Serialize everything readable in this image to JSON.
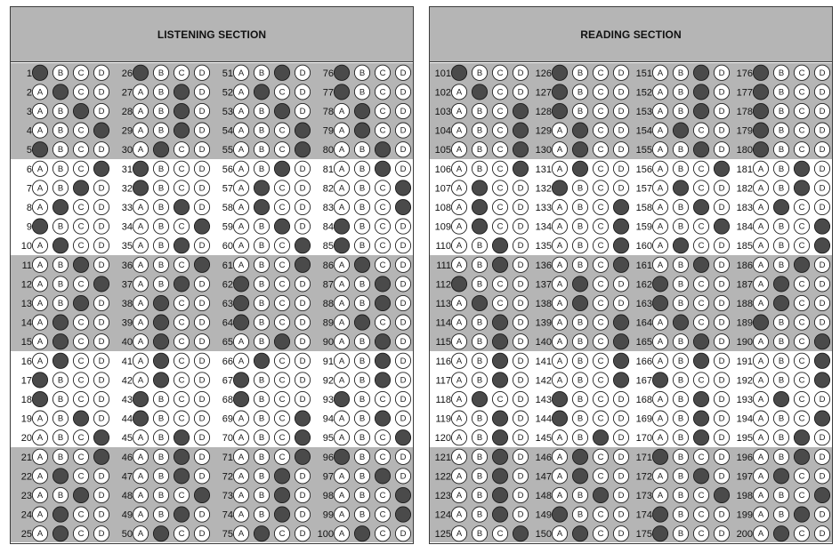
{
  "sections": [
    {
      "title": "LISTENING SECTION",
      "first_question": 1,
      "last_question": 100,
      "answers": [
        "A",
        "B",
        "C",
        "D",
        "A",
        "D",
        "C",
        "B",
        "A",
        "B",
        "C",
        "D",
        "C",
        "B",
        "B",
        "B",
        "A",
        "A",
        "C",
        "D",
        "D",
        "B",
        "C",
        "B",
        "B",
        "A",
        "C",
        "C",
        "C",
        "B",
        "A",
        "A",
        "C",
        "D",
        "C",
        "D",
        "C",
        "B",
        "B",
        "B",
        "B",
        "B",
        "A",
        "A",
        "C",
        "C",
        "C",
        "D",
        "C",
        "B",
        "C",
        "B",
        "C",
        "D",
        "D",
        "C",
        "B",
        "B",
        "C",
        "D",
        "D",
        "A",
        "A",
        "A",
        "C",
        "B",
        "A",
        "A",
        "D",
        "D",
        "D",
        "C",
        "C",
        "C",
        "B",
        "A",
        "A",
        "B",
        "B",
        "C",
        "C",
        "D",
        "D",
        "A",
        "A",
        "B",
        "C",
        "C",
        "B",
        "C",
        "C",
        "C",
        "A",
        "C",
        "D",
        "A",
        "C",
        "D",
        "D",
        "B"
      ]
    },
    {
      "title": "READING SECTION",
      "first_question": 101,
      "last_question": 200,
      "answers": [
        "A",
        "B",
        "D",
        "D",
        "D",
        "D",
        "B",
        "B",
        "B",
        "C",
        "C",
        "A",
        "B",
        "C",
        "C",
        "C",
        "C",
        "B",
        "C",
        "C",
        "C",
        "C",
        "C",
        "C",
        "D",
        "A",
        "A",
        "A",
        "B",
        "B",
        "B",
        "A",
        "D",
        "D",
        "D",
        "D",
        "B",
        "B",
        "D",
        "D",
        "D",
        "D",
        "A",
        "A",
        "C",
        "B",
        "B",
        "C",
        "A",
        "B",
        "C",
        "C",
        "C",
        "B",
        "C",
        "D",
        "B",
        "C",
        "D",
        "B",
        "C",
        "A",
        "A",
        "B",
        "C",
        "C",
        "A",
        "C",
        "C",
        "C",
        "A",
        "C",
        "D",
        "A",
        "A",
        "A",
        "A",
        "A",
        "A",
        "A",
        "C",
        "C",
        "B",
        "D",
        "D",
        "C",
        "B",
        "B",
        "A",
        "D",
        "D",
        "D",
        "B",
        "D",
        "C",
        "C",
        "B",
        "D",
        "C",
        "B"
      ]
    }
  ],
  "bubble_letters": [
    "A",
    "B",
    "C",
    "D"
  ],
  "colors": {
    "band": "#b5b5b5",
    "filled": "#4a4a4a",
    "border": "#3c3c3c"
  }
}
